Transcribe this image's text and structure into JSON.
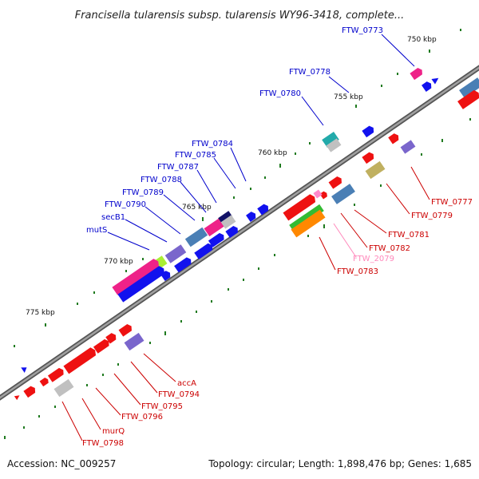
{
  "title": "Francisella tularensis subsp. tularensis WY96-3418, complete...",
  "footer": {
    "accession": "Accession: NC_009257",
    "summary": "Topology: circular; Length: 1,898,476 bp; Genes: 1,685"
  },
  "colors": {
    "backbone": "#8a8a8a",
    "tick": "#1f7a1f",
    "label_blue": "#0000cc",
    "label_red": "#cc0000",
    "label_pink": "#ff88bb",
    "red": "#ee1111",
    "blue": "#1111ee",
    "magenta": "#ee2288",
    "steelblue": "#4a7fb5",
    "slate": "#7a66cc",
    "silver": "#c0c0c0",
    "teal": "#22aaaa",
    "khaki": "#c0b060",
    "green": "#33bb33",
    "orange": "#ff8800",
    "lime": "#aaee33",
    "navy": "#111166",
    "pink": "#ff88cc"
  },
  "kbp_marks": [
    {
      "name": "kbp-750",
      "text": "750 kbp"
    },
    {
      "name": "kbp-755",
      "text": "755 kbp"
    },
    {
      "name": "kbp-760",
      "text": "760 kbp"
    },
    {
      "name": "kbp-765",
      "text": "765 kbp"
    },
    {
      "name": "kbp-770",
      "text": "770 kbp"
    },
    {
      "name": "kbp-775",
      "text": "775 kbp"
    }
  ],
  "gene_labels": [
    {
      "name": "ftw-0773",
      "text": "FTW_0773",
      "color": "blue"
    },
    {
      "name": "ftw-0778",
      "text": "FTW_0778",
      "color": "blue"
    },
    {
      "name": "ftw-0780",
      "text": "FTW_0780",
      "color": "blue"
    },
    {
      "name": "ftw-0784",
      "text": "FTW_0784",
      "color": "blue"
    },
    {
      "name": "ftw-0785",
      "text": "FTW_0785",
      "color": "blue"
    },
    {
      "name": "ftw-0787",
      "text": "FTW_0787",
      "color": "blue"
    },
    {
      "name": "ftw-0788",
      "text": "FTW_0788",
      "color": "blue"
    },
    {
      "name": "ftw-0789",
      "text": "FTW_0789",
      "color": "blue"
    },
    {
      "name": "ftw-0790",
      "text": "FTW_0790",
      "color": "blue"
    },
    {
      "name": "secb1",
      "text": "secB1",
      "color": "blue"
    },
    {
      "name": "muts",
      "text": "mutS",
      "color": "blue"
    },
    {
      "name": "ftw-0777",
      "text": "FTW_0777",
      "color": "red"
    },
    {
      "name": "ftw-0779",
      "text": "FTW_0779",
      "color": "red"
    },
    {
      "name": "ftw-0781",
      "text": "FTW_0781",
      "color": "red"
    },
    {
      "name": "ftw-0782",
      "text": "FTW_0782",
      "color": "red"
    },
    {
      "name": "ftw-2079",
      "text": "FTW_2079",
      "color": "pink"
    },
    {
      "name": "ftw-0783",
      "text": "FTW_0783",
      "color": "red"
    },
    {
      "name": "acca",
      "text": "accA",
      "color": "red"
    },
    {
      "name": "ftw-0794",
      "text": "FTW_0794",
      "color": "red"
    },
    {
      "name": "ftw-0795",
      "text": "FTW_0795",
      "color": "red"
    },
    {
      "name": "ftw-0796",
      "text": "FTW_0796",
      "color": "red"
    },
    {
      "name": "murq",
      "text": "murQ",
      "color": "red"
    },
    {
      "name": "ftw-0798",
      "text": "FTW_0798",
      "color": "red"
    }
  ]
}
